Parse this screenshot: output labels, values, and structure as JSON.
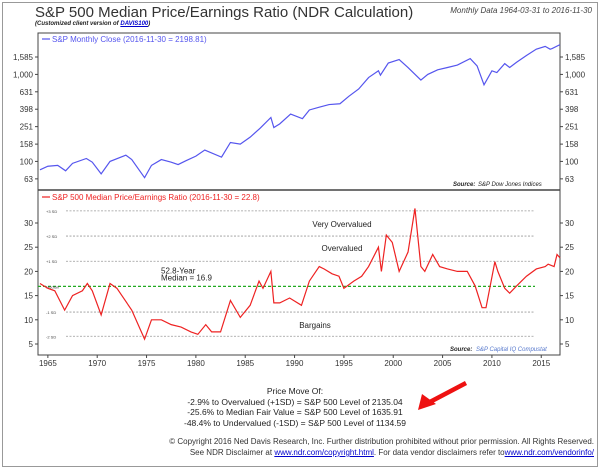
{
  "header": {
    "title": "S&P 500 Median Price/Earnings Ratio (NDR Calculation)",
    "subtitle_prefix": "(Customized client version of ",
    "subtitle_link": "DAVIS100",
    "subtitle_suffix": ")",
    "range": "Monthly Data 1964-03-31 to 2016-11-30"
  },
  "colors": {
    "spx": "#5555ee",
    "pe": "#ee2222",
    "median": "#22aa22",
    "arrow": "#ee1111"
  },
  "chart_data": [
    {
      "type": "line",
      "title": "S&P Monthly Close (2016-11-30 = 2198.81)",
      "yscale": "log",
      "ylim": [
        55,
        2600
      ],
      "yticks": [
        63,
        100,
        158,
        251,
        398,
        631,
        1000,
        1585
      ],
      "ytick_labels": [
        "63",
        "100",
        "158",
        "251",
        "398",
        "631",
        "1,000",
        "1,585"
      ],
      "source_label": "Source:",
      "source": "S&P Dow Jones Indices",
      "x": [
        1964.2,
        1965,
        1966,
        1966.8,
        1967.5,
        1968.9,
        1969.5,
        1970.4,
        1971.3,
        1972.9,
        1973.5,
        1974.8,
        1975.5,
        1976.5,
        1977.5,
        1978.2,
        1979,
        1980,
        1980.9,
        1982.6,
        1983.5,
        1984.5,
        1985.5,
        1986.5,
        1987.6,
        1987.9,
        1988.5,
        1989.6,
        1990.8,
        1991.5,
        1992.5,
        1993.5,
        1994.6,
        1995.5,
        1996.5,
        1997.5,
        1998.5,
        1998.7,
        1999.5,
        2000.6,
        2001.5,
        2002.8,
        2003.5,
        2004.5,
        2005.5,
        2006.5,
        2007.8,
        2008.5,
        2009.2,
        2010,
        2010.5,
        2011.3,
        2011.8,
        2012.5,
        2013.5,
        2014.5,
        2015.4,
        2015.9,
        2016.1,
        2016.9
      ],
      "values": [
        80,
        88,
        90,
        78,
        95,
        108,
        98,
        72,
        100,
        118,
        105,
        65,
        90,
        105,
        98,
        92,
        102,
        115,
        135,
        112,
        165,
        158,
        190,
        240,
        320,
        245,
        270,
        350,
        310,
        390,
        420,
        450,
        460,
        560,
        680,
        920,
        1100,
        980,
        1350,
        1480,
        1200,
        860,
        1000,
        1130,
        1200,
        1280,
        1520,
        1250,
        760,
        1100,
        1050,
        1330,
        1200,
        1380,
        1650,
        1950,
        2100,
        1950,
        1980,
        2199
      ]
    },
    {
      "type": "line",
      "title": "S&P 500 Median Price/Earnings Ratio (2016-11-30 = 22.8)",
      "ylim": [
        4,
        34.5
      ],
      "yticks": [
        5,
        10,
        15,
        20,
        25,
        30
      ],
      "source_label": "Source:",
      "source": "S&P Capital IQ Compustat",
      "x": [
        1964.2,
        1965,
        1965.7,
        1966.7,
        1967.5,
        1968.5,
        1969,
        1969.5,
        1970.4,
        1971.3,
        1972,
        1972.5,
        1973.5,
        1974.8,
        1975.5,
        1976.5,
        1977.5,
        1978.5,
        1979.5,
        1980.2,
        1981,
        1981.6,
        1982.5,
        1983.5,
        1984.5,
        1985.5,
        1986.4,
        1986.8,
        1987.6,
        1987.9,
        1988.5,
        1989.5,
        1990.7,
        1991.5,
        1992.5,
        1993,
        1993.8,
        1994.5,
        1995,
        1996,
        1996.8,
        1997.5,
        1998.5,
        1998.8,
        1999.3,
        1999.9,
        2000.6,
        2001.5,
        2002.2,
        2002.8,
        2003.2,
        2004,
        2004.7,
        2005.5,
        2006.5,
        2007.5,
        2008.3,
        2009,
        2009.4,
        2010.3,
        2010.6,
        2011.3,
        2011.8,
        2012.5,
        2013.5,
        2014.5,
        2015.4,
        2015.7,
        2016.3,
        2016.6,
        2016.9
      ],
      "values": [
        17.5,
        16.5,
        16,
        12,
        15,
        16,
        17.5,
        16,
        11,
        17.5,
        16.5,
        15,
        12,
        6,
        10,
        10,
        9,
        8.5,
        7.5,
        7,
        9,
        7.5,
        7.5,
        14,
        10.5,
        13,
        18,
        16.5,
        20,
        13.5,
        13.5,
        14.5,
        13,
        18,
        21,
        20.5,
        19.5,
        19,
        16.5,
        18,
        19,
        21,
        25,
        20,
        27.5,
        26,
        20,
        24,
        33,
        21,
        20,
        23.5,
        21,
        20.5,
        20,
        20,
        17,
        12.5,
        12.5,
        22,
        20,
        16.5,
        15.5,
        17,
        19,
        20.5,
        21,
        21.5,
        21,
        23.5,
        22.8
      ],
      "bands": [
        {
          "label": "+3 SD",
          "value": 32.5
        },
        {
          "label": "+2 SD",
          "value": 27.3
        },
        {
          "label": "+1 SD",
          "value": 22.1
        },
        {
          "label": "Median",
          "value": 16.9
        },
        {
          "label": "-1 SD",
          "value": 11.6
        },
        {
          "label": "-2 SD",
          "value": 6.6
        }
      ],
      "zone_labels": [
        "Very Overvalued",
        "Overvalued",
        "Bargains"
      ],
      "median_label_1": "52.8-Year",
      "median_label_2": "Median = 16.9"
    }
  ],
  "xaxis": {
    "ticks": [
      1965,
      1970,
      1975,
      1980,
      1985,
      1990,
      1995,
      2000,
      2005,
      2010,
      2015
    ],
    "range": [
      1964,
      2016.9
    ]
  },
  "notes": {
    "heading": "Price Move Of:",
    "lines": [
      "-2.9% to Overvalued (+1SD) = S&P 500 Level of 2135.04",
      "-25.6% to Median Fair Value = S&P 500 Level of 1635.91",
      "-48.4% to Undervalued (-1SD) = S&P 500 Level of 1134.59"
    ]
  },
  "footer": {
    "copyright": "© Copyright 2016 Ned Davis Research, Inc. Further distribution prohibited without prior permission. All Rights Reserved.",
    "disclaimer_prefix": "See NDR Disclaimer at ",
    "link1": "www.ndr.com/copyright.html",
    "disclaimer_mid": ". For data vendor disclaimers refer to",
    "link2": "www.ndr.com/vendorinfo/"
  }
}
